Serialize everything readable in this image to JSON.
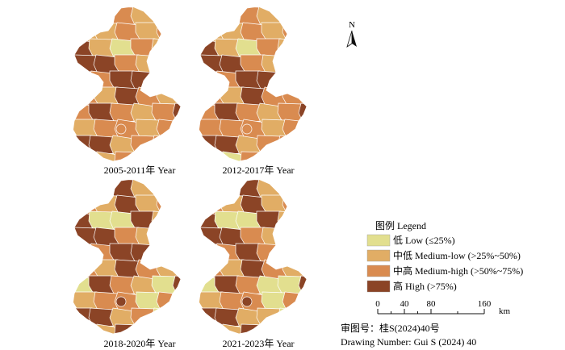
{
  "colors": {
    "low": "#e2df8f",
    "medium_low": "#e1ad65",
    "medium_high": "#d98b50",
    "high": "#8b4426",
    "outline": "#ffffff"
  },
  "panels": [
    {
      "label": "2005-2011年 Year",
      "pattern": [
        0,
        1,
        2,
        1,
        3,
        0,
        1,
        1,
        2,
        1,
        2,
        3,
        1,
        0,
        2,
        1,
        2,
        3,
        3,
        2,
        1,
        2,
        1,
        2,
        3,
        3,
        1,
        2,
        2,
        1,
        3,
        2,
        1,
        2,
        3,
        2,
        1,
        2,
        3,
        1,
        2,
        2,
        1,
        2,
        3,
        3,
        1,
        2,
        2,
        2
      ]
    },
    {
      "label": "2012-2017年 Year",
      "pattern": [
        0,
        0,
        2,
        1,
        3,
        0,
        1,
        1,
        2,
        1,
        2,
        3,
        1,
        0,
        2,
        1,
        2,
        3,
        3,
        2,
        1,
        2,
        2,
        2,
        3,
        3,
        1,
        2,
        2,
        1,
        3,
        2,
        2,
        2,
        3,
        2,
        1,
        2,
        3,
        2,
        2,
        2,
        1,
        2,
        3,
        3,
        1,
        2,
        2,
        2
      ]
    },
    {
      "label": "2018-2020年 Year",
      "pattern": [
        0,
        1,
        3,
        1,
        3,
        0,
        2,
        1,
        3,
        1,
        2,
        3,
        0,
        0,
        3,
        1,
        2,
        3,
        3,
        2,
        1,
        0,
        1,
        2,
        3,
        3,
        0,
        2,
        2,
        1,
        3,
        2,
        1,
        0,
        3,
        2,
        1,
        0,
        3,
        1,
        2,
        2,
        0,
        2,
        3,
        3,
        1,
        2,
        0,
        2
      ]
    },
    {
      "label": "2021-2023年 Year",
      "pattern": [
        0,
        1,
        3,
        1,
        2,
        0,
        2,
        1,
        3,
        1,
        2,
        3,
        0,
        0,
        3,
        1,
        1,
        3,
        3,
        2,
        1,
        0,
        1,
        2,
        3,
        2,
        0,
        2,
        2,
        1,
        3,
        2,
        1,
        0,
        3,
        2,
        0,
        0,
        3,
        1,
        2,
        2,
        0,
        2,
        3,
        3,
        1,
        1,
        0,
        2
      ]
    }
  ],
  "north": {
    "label": "N"
  },
  "legend": {
    "title": "图例 Legend",
    "items": [
      {
        "label": "低 Low (≤25%)",
        "color_key": "low"
      },
      {
        "label": "中低 Medium-low (>25%~50%)",
        "color_key": "medium_low"
      },
      {
        "label": "中高 Medium-high (>50%~75%)",
        "color_key": "medium_high"
      },
      {
        "label": "高 High (>75%)",
        "color_key": "high"
      }
    ]
  },
  "scale_bar": {
    "ticks": [
      "0",
      "40",
      "80",
      "160"
    ],
    "unit": "km"
  },
  "notes": {
    "review_number": "审图号：桂S(2024)40号",
    "drawing_number": "Drawing Number: Gui S (2024) 40"
  }
}
